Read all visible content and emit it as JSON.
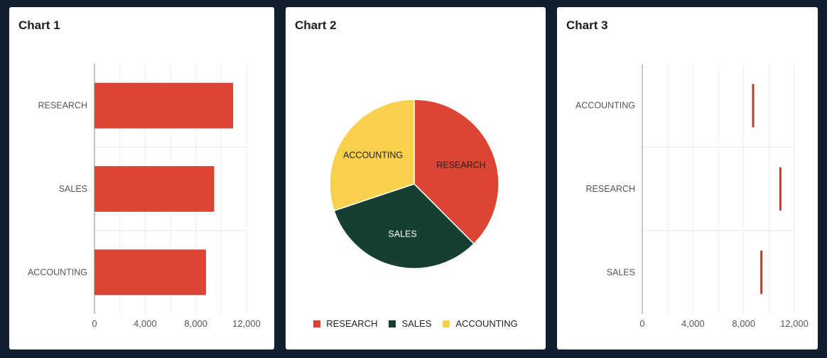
{
  "charts": [
    {
      "title": "Chart 1"
    },
    {
      "title": "Chart 2"
    },
    {
      "title": "Chart 3"
    }
  ],
  "colors": {
    "research": "#dc4433",
    "sales": "#173f31",
    "accounting": "#f9d04c",
    "marker": "#b34030",
    "page_background": "#111f2e"
  },
  "chart_data": [
    {
      "type": "bar",
      "orientation": "horizontal",
      "title": "Chart 1",
      "categories": [
        "RESEARCH",
        "SALES",
        "ACCOUNTING"
      ],
      "values": [
        10900,
        9400,
        8750
      ],
      "xlim": [
        0,
        12000
      ],
      "xticks": [
        "0",
        "4,000",
        "8,000",
        "12,000"
      ],
      "tick_values": [
        0,
        4000,
        8000,
        12000
      ],
      "grid": true,
      "color": "#dc4433"
    },
    {
      "type": "pie",
      "title": "Chart 2",
      "labels": [
        "RESEARCH",
        "SALES",
        "ACCOUNTING"
      ],
      "values": [
        10900,
        9400,
        8750
      ],
      "colors": [
        "#dc4433",
        "#173f31",
        "#f9d04c"
      ],
      "label_colors": [
        "#222222",
        "#ffffff",
        "#222222"
      ],
      "legend": "bottom"
    },
    {
      "type": "scatter",
      "marker": "vertical-line",
      "title": "Chart 3",
      "categories": [
        "ACCOUNTING",
        "RESEARCH",
        "SALES"
      ],
      "values": [
        8750,
        10900,
        9400
      ],
      "xlim": [
        0,
        12000
      ],
      "xticks": [
        "0",
        "4,000",
        "8,000",
        "12,000"
      ],
      "tick_values": [
        0,
        4000,
        8000,
        12000
      ],
      "grid": true,
      "color": "#b34030"
    }
  ]
}
